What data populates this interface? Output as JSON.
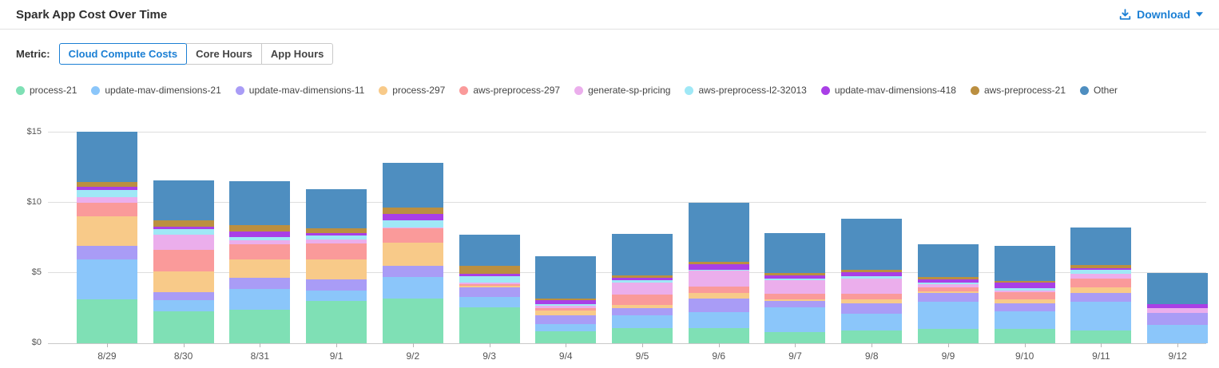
{
  "header": {
    "title": "Spark App Cost Over Time",
    "download_label": "Download"
  },
  "controls": {
    "metric_label": "Metric:",
    "options": [
      {
        "label": "Cloud Compute Costs",
        "selected": true
      },
      {
        "label": "Core Hours",
        "selected": false
      },
      {
        "label": "App Hours",
        "selected": false
      }
    ]
  },
  "colors": {
    "accent": "#1b7fd4",
    "axis_text": "#555555",
    "gridline": "#dedede",
    "baseline": "#c9c9c9"
  },
  "chart_data": {
    "type": "bar",
    "stacked": true,
    "title": "Spark App Cost Over Time",
    "xlabel": "",
    "ylabel": "",
    "ylim": [
      0,
      15
    ],
    "grid": true,
    "legend_position": "top",
    "y_ticks": [
      {
        "label": "$0",
        "value": 0
      },
      {
        "label": "$5",
        "value": 5
      },
      {
        "label": "$10",
        "value": 10
      },
      {
        "label": "$15",
        "value": 15
      }
    ],
    "categories": [
      "8/29",
      "8/30",
      "8/31",
      "9/1",
      "9/2",
      "9/3",
      "9/4",
      "9/5",
      "9/6",
      "9/7",
      "9/8",
      "9/9",
      "9/10",
      "9/11",
      "9/12"
    ],
    "series": [
      {
        "name": "process-21",
        "color": "#7fe0b5",
        "values": [
          3.1,
          2.25,
          2.4,
          3.0,
          3.15,
          2.55,
          0.85,
          1.1,
          1.1,
          0.8,
          0.9,
          1.0,
          1.0,
          0.9,
          0.0
        ]
      },
      {
        "name": "update-mav-dimensions-21",
        "color": "#8bc6fa",
        "values": [
          2.85,
          0.8,
          1.45,
          0.75,
          1.55,
          0.72,
          0.5,
          0.9,
          1.1,
          1.75,
          1.2,
          1.95,
          1.25,
          2.05,
          1.3
        ]
      },
      {
        "name": "update-mav-dimensions-11",
        "color": "#a99cf6",
        "values": [
          0.95,
          0.6,
          0.8,
          0.8,
          0.8,
          0.68,
          0.65,
          0.5,
          0.95,
          0.45,
          0.75,
          0.6,
          0.6,
          0.6,
          0.85
        ]
      },
      {
        "name": "process-297",
        "color": "#f8ca89",
        "values": [
          2.1,
          1.45,
          1.3,
          1.4,
          1.65,
          0.15,
          0.3,
          0.2,
          0.45,
          0.1,
          0.25,
          0.15,
          0.25,
          0.45,
          0.0
        ]
      },
      {
        "name": "aws-preprocess-297",
        "color": "#fa9a9a",
        "values": [
          1.0,
          1.55,
          1.1,
          1.15,
          1.0,
          0.12,
          0.2,
          0.75,
          0.45,
          0.4,
          0.4,
          0.3,
          0.55,
          0.6,
          0.0
        ]
      },
      {
        "name": "generate-sp-pricing",
        "color": "#ebaeec",
        "values": [
          0.4,
          1.05,
          0.25,
          0.3,
          0.1,
          0.08,
          0.15,
          0.85,
          1.1,
          1.0,
          1.1,
          0.2,
          0.1,
          0.35,
          0.35
        ]
      },
      {
        "name": "aws-preprocess-l2-32013",
        "color": "#9fe8f6",
        "values": [
          0.5,
          0.4,
          0.25,
          0.25,
          0.5,
          0.46,
          0.12,
          0.2,
          0.1,
          0.1,
          0.15,
          0.12,
          0.15,
          0.25,
          0.0
        ]
      },
      {
        "name": "update-mav-dimensions-418",
        "color": "#a93fe6",
        "values": [
          0.2,
          0.18,
          0.4,
          0.18,
          0.45,
          0.17,
          0.3,
          0.15,
          0.35,
          0.2,
          0.3,
          0.2,
          0.4,
          0.15,
          0.3
        ]
      },
      {
        "name": "aws-preprocess-21",
        "color": "#bb8f40",
        "values": [
          0.35,
          0.45,
          0.45,
          0.35,
          0.45,
          0.55,
          0.12,
          0.2,
          0.2,
          0.2,
          0.15,
          0.2,
          0.15,
          0.2,
          0.0
        ]
      },
      {
        "name": "Other",
        "color": "#4e8ec0",
        "values": [
          3.6,
          2.85,
          3.1,
          2.8,
          3.15,
          2.25,
          3.0,
          2.95,
          4.2,
          2.85,
          3.65,
          2.3,
          2.5,
          2.7,
          2.2
        ]
      }
    ]
  }
}
